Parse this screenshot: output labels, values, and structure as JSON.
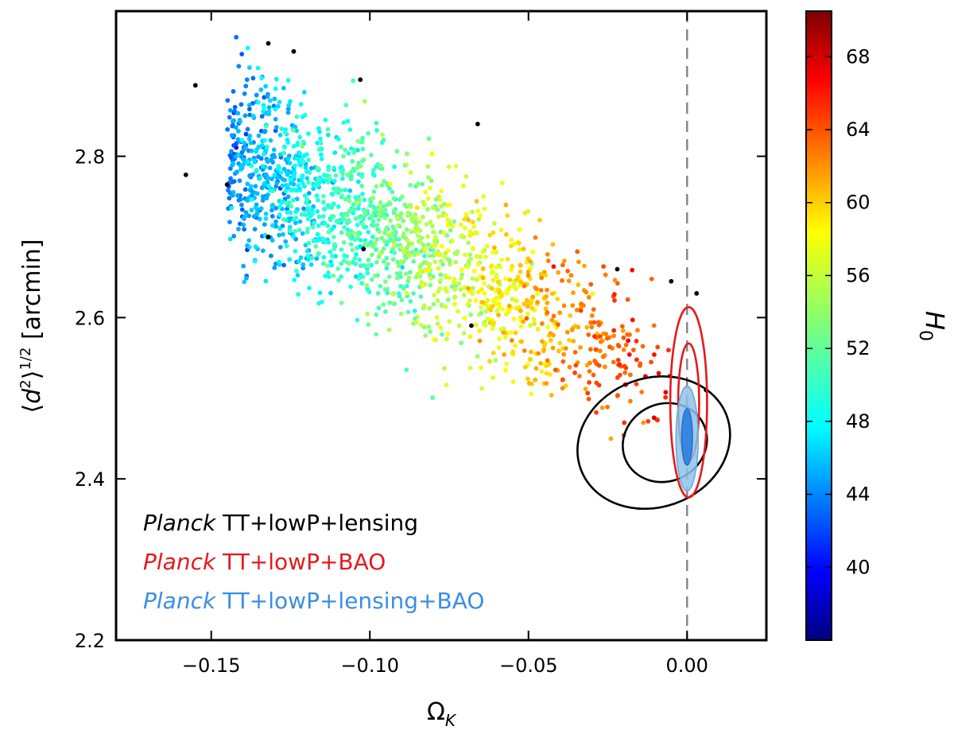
{
  "chart_data": {
    "type": "scatter",
    "title": "",
    "xlabel": "Ω_K",
    "xlabel_main": "Ω",
    "xlabel_sub": "K",
    "ylabel": "⟨d²⟩^(1/2) [arcmin]",
    "ylabel_parts": {
      "open": "⟨",
      "var": "d",
      "sq": "2",
      "close": "⟩",
      "pow": "1/2",
      "unit": " [arcmin]"
    },
    "xlim": [
      -0.18,
      0.025
    ],
    "ylim": [
      2.2,
      2.98
    ],
    "xticks": [
      -0.15,
      -0.1,
      -0.05,
      0.0
    ],
    "xtick_labels": [
      "−0.15",
      "−0.10",
      "−0.05",
      "0.00"
    ],
    "yticks": [
      2.2,
      2.4,
      2.6,
      2.8
    ],
    "ytick_labels": [
      "2.2",
      "2.4",
      "2.6",
      "2.8"
    ],
    "reference_line": {
      "x": 0.0,
      "style": "dashed",
      "color": "#888888"
    },
    "colorbar": {
      "label": "H",
      "label_sub": "0",
      "range": [
        36,
        70.5
      ],
      "ticks": [
        40,
        44,
        48,
        52,
        56,
        60,
        64,
        68
      ],
      "tick_labels": [
        "40",
        "44",
        "48",
        "52",
        "56",
        "60",
        "64",
        "68"
      ],
      "colormap": "jet"
    },
    "scatter_samples": {
      "description_of_trend": "H0 increases as Omega_K increases toward zero",
      "anchor_points": [
        {
          "x": -0.158,
          "y": 2.777,
          "h0": 42
        },
        {
          "x": -0.155,
          "y": 2.888,
          "h0": 42
        },
        {
          "x": -0.132,
          "y": 2.94,
          "h0": 43
        },
        {
          "x": -0.124,
          "y": 2.93,
          "h0": 43
        },
        {
          "x": -0.132,
          "y": 2.7,
          "h0": 43
        },
        {
          "x": -0.145,
          "y": 2.765,
          "h0": 42
        },
        {
          "x": -0.103,
          "y": 2.895,
          "h0": 45
        },
        {
          "x": -0.102,
          "y": 2.685,
          "h0": 46
        },
        {
          "x": -0.066,
          "y": 2.84,
          "h0": 50
        },
        {
          "x": -0.068,
          "y": 2.59,
          "h0": 50
        },
        {
          "x": -0.022,
          "y": 2.66,
          "h0": 56
        },
        {
          "x": -0.005,
          "y": 2.645,
          "h0": 63
        },
        {
          "x": 0.003,
          "y": 2.63,
          "h0": 66
        },
        {
          "x": 0.006,
          "y": 2.51,
          "h0": 67
        }
      ]
    },
    "contours": [
      {
        "name": "Planck TT+lowP+lensing",
        "color": "#000000",
        "filled": false,
        "ellipses": [
          {
            "cx": -0.0105,
            "cy": 2.445,
            "rx": 0.0245,
            "ry": 0.08,
            "angle_deg": -20,
            "level": "95%"
          },
          {
            "cx": -0.007,
            "cy": 2.445,
            "rx": 0.0135,
            "ry": 0.048,
            "angle_deg": -25,
            "level": "68%"
          }
        ]
      },
      {
        "name": "Planck TT+lowP+BAO",
        "color": "#e41a1c",
        "filled": false,
        "ellipses": [
          {
            "cx": 0.0005,
            "cy": 2.495,
            "rx": 0.0058,
            "ry": 0.118,
            "angle_deg": 0,
            "level": "95%"
          },
          {
            "cx": 0.0005,
            "cy": 2.495,
            "rx": 0.0033,
            "ry": 0.073,
            "angle_deg": 0,
            "level": "68%"
          }
        ]
      },
      {
        "name": "Planck TT+lowP+lensing+BAO",
        "color": "#3a8ee6",
        "filled": true,
        "ellipses": [
          {
            "cx": 0.0,
            "cy": 2.45,
            "rx": 0.0035,
            "ry": 0.065,
            "angle_deg": 0,
            "level": "95%",
            "fill": "#8fc2ea"
          },
          {
            "cx": 0.0,
            "cy": 2.452,
            "rx": 0.0017,
            "ry": 0.035,
            "angle_deg": 0,
            "level": "68%",
            "fill": "#2b7fe0"
          }
        ]
      }
    ],
    "legend": {
      "placement": "lower-left",
      "entries": [
        {
          "italic": "Planck",
          "text": " TT+lowP+lensing",
          "color": "#000000"
        },
        {
          "italic": "Planck",
          "text": " TT+lowP+BAO",
          "color": "#e41a1c"
        },
        {
          "italic": "Planck",
          "text": " TT+lowP+lensing+BAO",
          "color": "#3a8ee6"
        }
      ]
    }
  }
}
